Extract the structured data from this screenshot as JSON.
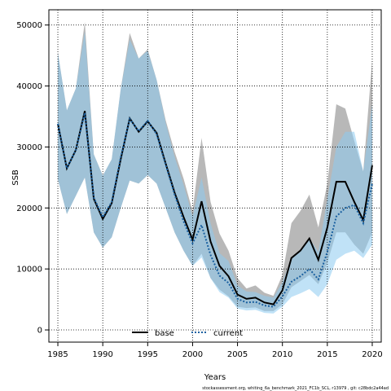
{
  "footer": "stockassessment.org, whiting_6a_benchmark_2021_FC1b_SCL, r13979 , git: c28bdc2a44ad",
  "chart_data": {
    "type": "line",
    "xlabel": "Years",
    "ylabel": "SSB",
    "xlim": [
      1984,
      2021
    ],
    "ylim": [
      -2000,
      52500
    ],
    "xticks": [
      1985,
      1990,
      1995,
      2000,
      2005,
      2010,
      2015,
      2020
    ],
    "yticks": [
      0,
      10000,
      20000,
      30000,
      40000,
      50000
    ],
    "grid": true,
    "legend_position": "bottom-center",
    "x": [
      1985,
      1986,
      1987,
      1988,
      1989,
      1990,
      1991,
      1992,
      1993,
      1994,
      1995,
      1996,
      1997,
      1998,
      1999,
      2000,
      2001,
      2002,
      2003,
      2004,
      2005,
      2006,
      2007,
      2008,
      2009,
      2010,
      2011,
      2012,
      2013,
      2014,
      2015,
      2016,
      2017,
      2018,
      2019,
      2020
    ],
    "series": [
      {
        "name": "base",
        "color": "#000000",
        "line_style": "solid",
        "band_color": "#a0a0a0",
        "values": [
          33800,
          26500,
          29500,
          35900,
          21500,
          18200,
          20800,
          28000,
          34700,
          32500,
          34200,
          32300,
          27300,
          22500,
          18500,
          14800,
          21100,
          14500,
          10500,
          8800,
          5800,
          5100,
          5300,
          4500,
          4200,
          6500,
          11800,
          13000,
          15000,
          11500,
          16800,
          24300,
          24300,
          21000,
          18000,
          27000
        ],
        "lower": [
          24700,
          19000,
          22000,
          25000,
          16000,
          13500,
          15200,
          20000,
          24500,
          24000,
          25400,
          24000,
          20000,
          16000,
          13000,
          10500,
          12500,
          8500,
          6600,
          5500,
          3800,
          3600,
          3700,
          3100,
          3100,
          4200,
          7000,
          8000,
          9000,
          7500,
          11000,
          16000,
          16000,
          14000,
          12500,
          16000
        ],
        "upper": [
          45500,
          36000,
          39600,
          50500,
          28800,
          25300,
          28000,
          39500,
          48700,
          44500,
          46000,
          41000,
          34400,
          29200,
          24800,
          19500,
          31500,
          21000,
          15800,
          13000,
          8500,
          6800,
          7300,
          6100,
          5600,
          9000,
          17500,
          19500,
          22200,
          16800,
          24000,
          37000,
          36300,
          31000,
          26000,
          44300
        ]
      },
      {
        "name": "current",
        "color": "#1a60a0",
        "line_style": "dotted",
        "band_color": "#8ccaf0",
        "values": [
          33800,
          26500,
          29500,
          35600,
          21700,
          18500,
          21000,
          28300,
          34600,
          32600,
          34300,
          32100,
          27100,
          22200,
          17800,
          14200,
          17200,
          12300,
          8900,
          7700,
          5100,
          4500,
          4600,
          4000,
          3800,
          5500,
          7900,
          8800,
          10000,
          8300,
          12800,
          18600,
          20000,
          20500,
          17500,
          24000
        ],
        "lower": [
          24700,
          19000,
          22000,
          25000,
          16000,
          13500,
          15200,
          20000,
          24500,
          24000,
          25400,
          24000,
          20000,
          16000,
          13000,
          10500,
          11900,
          8500,
          6200,
          5300,
          3500,
          3200,
          3300,
          2800,
          2700,
          3800,
          5400,
          6000,
          6700,
          5400,
          7500,
          11500,
          12500,
          13000,
          11800,
          14000
        ],
        "upper": [
          45500,
          36000,
          39600,
          49000,
          28800,
          25300,
          28000,
          39500,
          47600,
          44500,
          45800,
          41000,
          34000,
          28400,
          23800,
          18600,
          25000,
          17500,
          12600,
          11300,
          7300,
          6300,
          6200,
          5600,
          5300,
          7800,
          11700,
          13000,
          15000,
          12800,
          21500,
          30000,
          32500,
          32500,
          26000,
          37000
        ]
      }
    ]
  }
}
